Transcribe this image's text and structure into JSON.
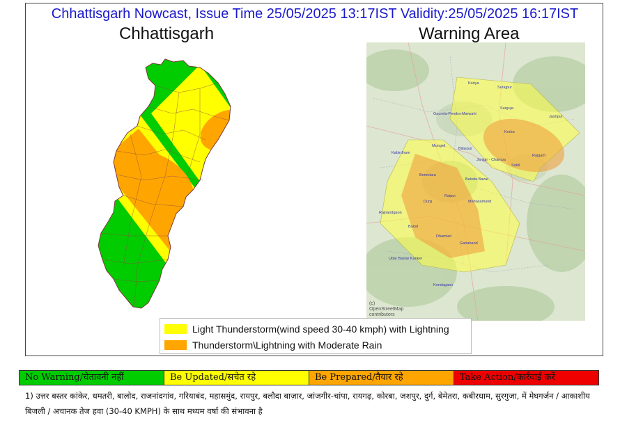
{
  "header": {
    "title": "Chhattisgarh Nowcast, Issue Time 25/05/2025 13:17IST  Validity:25/05/2025 16:17IST"
  },
  "panels": {
    "left_title": "Chhattisgarh",
    "right_title": "Warning Area"
  },
  "map_places": [
    "Koriya",
    "Surajpur",
    "Gaurela-Pendra-Marwahi",
    "Surguja",
    "Jashpur",
    "Korba",
    "Mungeli",
    "Bilaspur",
    "Kabirdham",
    "Janjgir - Champa",
    "Raigarh",
    "Sakti",
    "Baloda Bazar",
    "Bemetara",
    "Raipur",
    "Durg",
    "Mahasamund",
    "Rajnandgaon",
    "Balod",
    "Dhamtari",
    "Gariaband",
    "Uttar Bastar Kanker",
    "Kondagaon"
  ],
  "attribution": [
    "(c)",
    "OpenStreetMap",
    "contributors"
  ],
  "legend": [
    {
      "label": "Light Thunderstorm(wind speed 30-40 kmph) with Lightning",
      "color": "#ffff00"
    },
    {
      "label": "Thunderstorm\\Lightning with Moderate Rain",
      "color": "#ffa500"
    }
  ],
  "warning_scale": [
    {
      "label": "No Warning/चेतावनी नहीं",
      "color": "#00cc00"
    },
    {
      "label": "Be Updated/सचेत रहे",
      "color": "#ffff00"
    },
    {
      "label": "Be Prepared/तैयार रहे",
      "color": "#ffa500"
    },
    {
      "label": "Take Action/कार्रवाई करें",
      "color": "#ee0000"
    }
  ],
  "footnote": "1) उत्तर बस्तर कांकेर, धमतरी, बालोद, राजनांदगांव, गरियाबंद, महासमुंद, रायपुर, बलौदा बाज़ार, जांजगीर-चांपा, रायगढ़, कोरबा, जशपुर, दुर्ग, बेमेतरा, कबीरधाम, सुरगुजा, में मेघगर्जन / आकाशीय बिजली / अचानक तेज हवा (30-40 KMPH) के साथ मध्यम वर्षा की संभावना है"
}
